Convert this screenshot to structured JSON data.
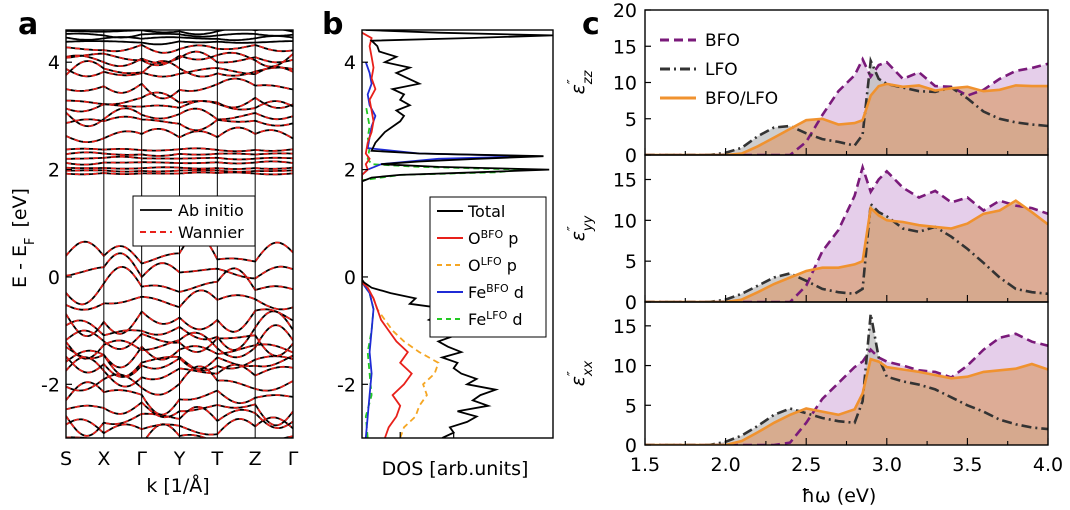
{
  "panel_labels": {
    "a": "a",
    "b": "b",
    "c": "c"
  },
  "colors": {
    "total": "#000000",
    "o_bfo": "#e8201a",
    "o_lfo": "#f5a623",
    "fe_bfo": "#1f2bd6",
    "fe_lfo": "#22c922",
    "bfo": "#7a1a7a",
    "bfo_fill": "#e0c6e6",
    "lfo": "#333333",
    "lfo_fill": "#c2c2c2",
    "het": "#f0922f",
    "het_fill": "#d9a07a"
  },
  "chart_data": [
    {
      "type": "line",
      "panel": "a",
      "ylabel": {
        "main": "E - E",
        "sub": "F",
        "unit": "[eV]"
      },
      "xlabel": "k  [1/Å]",
      "k_labels": [
        "S",
        "X",
        "Γ",
        "Y",
        "T",
        "Z",
        "Γ"
      ],
      "ylim": [
        -3,
        4.6
      ],
      "y_ticks": [
        "-2",
        "0",
        "2",
        "4"
      ],
      "legend": [
        {
          "name": "Ab initio",
          "color": "#000000",
          "dash": "solid"
        },
        {
          "name": "Wannier",
          "color": "#e8201a",
          "dash": "dashed"
        }
      ],
      "band_groups": [
        {
          "center": 4.48,
          "count": 4,
          "spread": 0.1,
          "amp": 0.05,
          "type": "abinitio"
        },
        {
          "center": 4.05,
          "count": 3,
          "spread": 0.22,
          "amp": 0.18,
          "type": "both"
        },
        {
          "center": 3.55,
          "count": 5,
          "spread": 0.55,
          "amp": 0.22,
          "type": "both"
        },
        {
          "center": 2.9,
          "count": 3,
          "spread": 0.28,
          "amp": 0.15,
          "type": "both"
        },
        {
          "center": 2.25,
          "count": 4,
          "spread": 0.12,
          "amp": 0.03,
          "type": "both"
        },
        {
          "center": 1.98,
          "count": 3,
          "spread": 0.05,
          "amp": 0.02,
          "type": "both"
        },
        {
          "center": -0.6,
          "count": 8,
          "spread": 0.95,
          "amp": 0.35,
          "type": "both"
        },
        {
          "center": -2.1,
          "count": 10,
          "spread": 0.95,
          "amp": 0.3,
          "type": "both"
        }
      ]
    },
    {
      "type": "line",
      "panel": "b",
      "xlabel": "DOS  [arb.units]",
      "ylim": [
        -3,
        4.6
      ],
      "y_ticks": [
        "-2",
        "0",
        "2",
        "4"
      ],
      "x_range": [
        0,
        1
      ],
      "legend": [
        {
          "name": "Total",
          "color": "#000000",
          "dash": "solid"
        },
        {
          "name": "O",
          "sup": "BFO",
          "suffix": " p",
          "color": "#e8201a",
          "dash": "solid"
        },
        {
          "name": "O",
          "sup": "LFO",
          "suffix": " p",
          "color": "#f5a623",
          "dash": "dashed"
        },
        {
          "name": "Fe",
          "sup": "BFO",
          "suffix": " d",
          "color": "#1f2bd6",
          "dash": "solid"
        },
        {
          "name": "Fe",
          "sup": "LFO",
          "suffix": " d",
          "color": "#22c922",
          "dash": "dashed"
        }
      ],
      "series": [
        {
          "name": "Total",
          "color": "#000000",
          "dash": "",
          "energy": [
            -3,
            -2.9,
            -2.8,
            -2.7,
            -2.6,
            -2.5,
            -2.4,
            -2.3,
            -2.2,
            -2.1,
            -2.0,
            -1.9,
            -1.8,
            -1.7,
            -1.6,
            -1.5,
            -1.4,
            -1.3,
            -1.2,
            -1.1,
            -1.0,
            -0.9,
            -0.8,
            -0.7,
            -0.6,
            -0.5,
            -0.4,
            -0.3,
            -0.2,
            -0.1,
            -0.05,
            1.78,
            1.85,
            1.9,
            1.95,
            2.0,
            2.05,
            2.1,
            2.15,
            2.2,
            2.25,
            2.3,
            2.35,
            2.5,
            2.7,
            2.8,
            2.9,
            3.0,
            3.1,
            3.2,
            3.3,
            3.4,
            3.5,
            3.6,
            3.7,
            3.8,
            3.9,
            4.0,
            4.1,
            4.2,
            4.3,
            4.4,
            4.45,
            4.5,
            4.55,
            4.6
          ],
          "dos": [
            0.42,
            0.48,
            0.46,
            0.55,
            0.6,
            0.5,
            0.66,
            0.58,
            0.62,
            0.7,
            0.55,
            0.6,
            0.52,
            0.48,
            0.5,
            0.42,
            0.52,
            0.45,
            0.4,
            0.48,
            0.38,
            0.45,
            0.35,
            0.4,
            0.46,
            0.25,
            0.28,
            0.15,
            0.05,
            0.01,
            0.0,
            0.0,
            0.05,
            0.2,
            0.6,
            0.98,
            0.4,
            0.1,
            0.3,
            0.6,
            0.95,
            0.3,
            0.05,
            0.07,
            0.12,
            0.16,
            0.2,
            0.22,
            0.18,
            0.25,
            0.2,
            0.22,
            0.16,
            0.3,
            0.24,
            0.18,
            0.25,
            0.12,
            0.18,
            0.09,
            0.08,
            0.05,
            0.55,
            1.0,
            0.4,
            0.02
          ]
        },
        {
          "name": "O BFO p",
          "color": "#e8201a",
          "dash": "",
          "energy": [
            -3,
            -2.8,
            -2.6,
            -2.4,
            -2.2,
            -2.0,
            -1.8,
            -1.6,
            -1.4,
            -1.2,
            -1.0,
            -0.8,
            -0.6,
            -0.4,
            -0.2,
            -0.1,
            1.9,
            2.0,
            2.1,
            2.2,
            2.3,
            2.5,
            2.7,
            2.9,
            3.1,
            3.3,
            3.5,
            3.7,
            3.9,
            4.1,
            4.3,
            4.45,
            4.55
          ],
          "dos": [
            0.12,
            0.14,
            0.18,
            0.2,
            0.16,
            0.22,
            0.26,
            0.2,
            0.24,
            0.18,
            0.14,
            0.1,
            0.08,
            0.06,
            0.03,
            0.0,
            0.0,
            0.03,
            0.02,
            0.04,
            0.02,
            0.03,
            0.05,
            0.06,
            0.05,
            0.04,
            0.07,
            0.05,
            0.06,
            0.05,
            0.04,
            0.05,
            0.0
          ]
        },
        {
          "name": "O LFO p",
          "color": "#f5a623",
          "dash": "6,4",
          "energy": [
            -3,
            -2.8,
            -2.6,
            -2.4,
            -2.2,
            -2.0,
            -1.8,
            -1.6,
            -1.4,
            -1.2,
            -1.0,
            -0.8,
            -0.6,
            -0.4,
            -0.2,
            -0.1
          ],
          "dos": [
            0.2,
            0.22,
            0.28,
            0.3,
            0.34,
            0.32,
            0.38,
            0.4,
            0.3,
            0.22,
            0.16,
            0.12,
            0.08,
            0.06,
            0.03,
            0.0
          ]
        },
        {
          "name": "Fe BFO d",
          "color": "#1f2bd6",
          "dash": "",
          "energy": [
            -3,
            -2.6,
            -2.2,
            -1.8,
            -1.4,
            -1.0,
            -0.6,
            -0.3,
            -0.1,
            1.9,
            2.0,
            2.1,
            2.2,
            2.25,
            2.3,
            2.4,
            2.6,
            2.8,
            3.0,
            3.2,
            3.4,
            3.6,
            3.8,
            4.0
          ],
          "dos": [
            0.02,
            0.03,
            0.04,
            0.05,
            0.04,
            0.05,
            0.06,
            0.04,
            0.0,
            0.0,
            0.03,
            0.1,
            0.4,
            0.9,
            0.3,
            0.03,
            0.04,
            0.05,
            0.07,
            0.04,
            0.03,
            0.05,
            0.04,
            0.02
          ]
        },
        {
          "name": "Fe LFO d",
          "color": "#22c922",
          "dash": "6,4",
          "energy": [
            -3,
            -2.6,
            -2.2,
            -1.8,
            -1.4,
            -1.0,
            -0.6,
            -0.3,
            -0.1,
            1.8,
            1.9,
            1.95,
            2.0,
            2.05,
            2.1,
            2.2,
            2.4,
            2.6,
            2.8,
            3.0,
            3.2
          ],
          "dos": [
            0.03,
            0.02,
            0.05,
            0.04,
            0.03,
            0.05,
            0.06,
            0.04,
            0.0,
            0.0,
            0.2,
            0.7,
            0.85,
            0.3,
            0.05,
            0.03,
            0.04,
            0.03,
            0.04,
            0.03,
            0.02
          ]
        }
      ]
    },
    {
      "type": "area",
      "panel": "c",
      "xlabel": "ħω (eV)",
      "xlim": [
        1.5,
        4.0
      ],
      "x_ticks": [
        "1.5",
        "2.0",
        "2.5",
        "3.0",
        "3.5",
        "4.0"
      ],
      "legend": [
        {
          "name": "BFO",
          "color": "#7a1a7a",
          "dash": "dashed"
        },
        {
          "name": "LFO",
          "color": "#333333",
          "dash": "dashdot"
        },
        {
          "name": "BFO/LFO",
          "color": "#f0922f",
          "dash": "solid"
        }
      ],
      "subplots": [
        {
          "ylabel": {
            "main": "ε",
            "prime": "″",
            "sub": "zz"
          },
          "ylim": [
            0,
            20
          ],
          "y_ticks": [
            "0",
            "5",
            "10",
            "15",
            "20"
          ],
          "x": [
            1.5,
            1.9,
            2.0,
            2.1,
            2.2,
            2.3,
            2.4,
            2.5,
            2.6,
            2.7,
            2.8,
            2.85,
            2.9,
            2.95,
            3.0,
            3.1,
            3.2,
            3.3,
            3.4,
            3.5,
            3.6,
            3.7,
            3.8,
            3.9,
            4.0
          ],
          "series": [
            {
              "name": "BFO",
              "values": [
                0,
                0,
                0,
                0,
                0,
                0,
                0,
                1.8,
                5.5,
                8.8,
                11.0,
                13.2,
                10.8,
                12.4,
                12.8,
                10.5,
                11.4,
                9.5,
                9.4,
                8.2,
                9.0,
                10.5,
                11.6,
                12.0,
                12.6
              ]
            },
            {
              "name": "LFO",
              "values": [
                0,
                0,
                0.3,
                1.0,
                2.6,
                3.8,
                4.0,
                3.0,
                2.2,
                1.8,
                1.3,
                2.8,
                13.0,
                10.5,
                9.8,
                9.3,
                8.8,
                8.7,
                9.3,
                7.8,
                6.0,
                5.0,
                4.5,
                4.2,
                4.0
              ]
            },
            {
              "name": "BFO/LFO",
              "values": [
                0,
                0,
                0,
                0.2,
                1.2,
                2.4,
                3.6,
                4.8,
                5.0,
                4.2,
                4.4,
                4.8,
                8.2,
                9.5,
                9.8,
                9.4,
                9.6,
                8.9,
                9.2,
                9.4,
                8.8,
                9.0,
                9.6,
                9.5,
                9.5
              ]
            }
          ]
        },
        {
          "ylabel": {
            "main": "ε",
            "prime": "″",
            "sub": "yy"
          },
          "ylim": [
            0,
            18
          ],
          "y_ticks": [
            "0",
            "5",
            "10",
            "15"
          ],
          "x": [
            1.5,
            1.9,
            2.0,
            2.1,
            2.2,
            2.3,
            2.4,
            2.5,
            2.6,
            2.7,
            2.8,
            2.85,
            2.9,
            2.95,
            3.0,
            3.1,
            3.2,
            3.3,
            3.4,
            3.5,
            3.6,
            3.7,
            3.8,
            3.9,
            4.0
          ],
          "series": [
            {
              "name": "BFO",
              "values": [
                0,
                0,
                0,
                0,
                0,
                0,
                0,
                2.0,
                6.2,
                8.8,
                13.0,
                16.5,
                13.5,
                15.0,
                16.0,
                14.0,
                12.8,
                13.6,
                12.2,
                12.8,
                11.2,
                12.4,
                11.8,
                11.5,
                10.8
              ]
            },
            {
              "name": "LFO",
              "values": [
                0,
                0,
                0.3,
                1.0,
                2.0,
                3.0,
                3.5,
                2.6,
                1.6,
                1.2,
                1.0,
                1.6,
                12.0,
                11.0,
                10.5,
                9.0,
                8.6,
                9.2,
                8.0,
                6.5,
                4.8,
                3.0,
                1.6,
                1.2,
                1.0
              ]
            },
            {
              "name": "BFO/LFO",
              "values": [
                0,
                0,
                0,
                0.3,
                1.2,
                2.2,
                3.0,
                3.8,
                4.2,
                4.2,
                4.6,
                5.0,
                11.5,
                10.6,
                10.0,
                9.8,
                9.4,
                9.2,
                9.0,
                9.6,
                10.8,
                11.2,
                12.4,
                11.0,
                9.5
              ]
            }
          ]
        },
        {
          "ylabel": {
            "main": "ε",
            "prime": "″",
            "sub": "xx"
          },
          "ylim": [
            0,
            18
          ],
          "y_ticks": [
            "0",
            "5",
            "10",
            "15"
          ],
          "x": [
            1.5,
            1.9,
            2.0,
            2.1,
            2.2,
            2.3,
            2.4,
            2.5,
            2.6,
            2.7,
            2.8,
            2.85,
            2.9,
            2.95,
            3.0,
            3.1,
            3.2,
            3.3,
            3.4,
            3.5,
            3.6,
            3.7,
            3.8,
            3.9,
            4.0
          ],
          "series": [
            {
              "name": "BFO",
              "values": [
                0,
                0,
                0,
                0,
                0,
                0,
                0.3,
                2.8,
                5.8,
                7.8,
                9.8,
                10.5,
                12.0,
                11.0,
                10.5,
                10.0,
                9.4,
                9.2,
                8.5,
                10.0,
                12.0,
                13.5,
                14.0,
                13.0,
                12.5
              ]
            },
            {
              "name": "LFO",
              "values": [
                0,
                0,
                0.4,
                1.2,
                2.4,
                3.8,
                4.6,
                4.0,
                3.4,
                3.0,
                2.8,
                5.5,
                16.5,
                11.0,
                8.6,
                8.0,
                7.6,
                7.0,
                6.0,
                5.0,
                4.2,
                3.2,
                2.6,
                2.2,
                2.0
              ]
            },
            {
              "name": "BFO/LFO",
              "values": [
                0,
                0,
                0,
                0.5,
                1.6,
                2.8,
                3.8,
                4.6,
                4.2,
                3.8,
                4.5,
                6.5,
                10.8,
                10.5,
                9.8,
                9.5,
                9.2,
                8.8,
                8.4,
                8.6,
                9.2,
                9.4,
                9.6,
                10.2,
                9.5
              ]
            }
          ]
        }
      ]
    }
  ]
}
